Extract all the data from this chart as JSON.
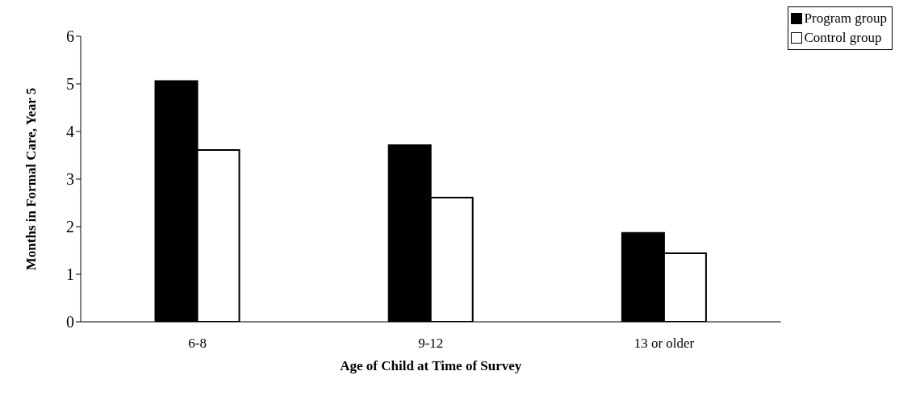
{
  "chart_data": {
    "type": "bar",
    "xlabel": "Age of Child at Time of Survey",
    "ylabel": "Months in Formal Care, Year 5",
    "categories": [
      "6-8",
      "9-12",
      "13 or older"
    ],
    "series": [
      {
        "name": "Program group",
        "color": "#000000",
        "values": [
          5.06,
          3.71,
          1.87
        ]
      },
      {
        "name": "Control group",
        "color": "#ffffff",
        "values": [
          3.61,
          2.61,
          1.44
        ]
      }
    ],
    "ylim": [
      0,
      6
    ],
    "yticks": [
      0,
      1,
      2,
      3,
      4,
      5,
      6
    ],
    "grid": false,
    "legend": "top right"
  }
}
